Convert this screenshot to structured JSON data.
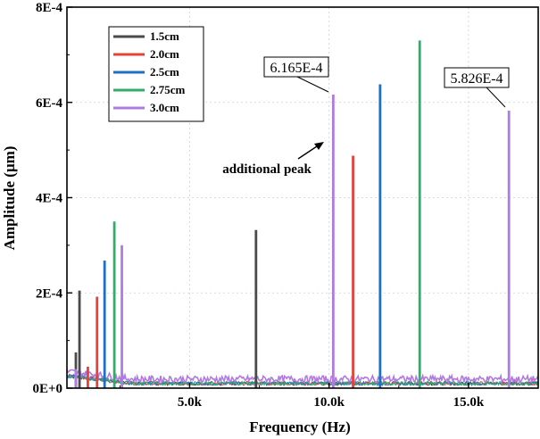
{
  "chart_data": {
    "type": "line",
    "title": "",
    "xlabel": "Frequency (Hz)",
    "ylabel": "Amplitude (μm)",
    "xlim": [
      600,
      17500
    ],
    "ylim": [
      0,
      0.0008
    ],
    "grid": true,
    "legend_position": "top-left",
    "x_ticks": [
      {
        "value": 5000,
        "label": "5.0k"
      },
      {
        "value": 10000,
        "label": "10.0k"
      },
      {
        "value": 15000,
        "label": "15.0k"
      }
    ],
    "y_ticks": [
      {
        "value": 0,
        "label": "0E+0"
      },
      {
        "value": 0.0002,
        "label": "2E-4"
      },
      {
        "value": 0.0004,
        "label": "4E-4"
      },
      {
        "value": 0.0006,
        "label": "6E-4"
      },
      {
        "value": 0.0008,
        "label": "8E-4"
      }
    ],
    "series": [
      {
        "name": "1.5cm",
        "color": "#4a4a4a",
        "peaks": [
          {
            "x": 920,
            "y": 7.5e-05
          },
          {
            "x": 1050,
            "y": 0.000205
          },
          {
            "x": 7380,
            "y": 0.000332
          }
        ]
      },
      {
        "name": "2.0cm",
        "color": "#e8403a",
        "peaks": [
          {
            "x": 1350,
            "y": 4.5e-05
          },
          {
            "x": 1680,
            "y": 0.000192
          },
          {
            "x": 10860,
            "y": 0.000488
          }
        ]
      },
      {
        "name": "2.5cm",
        "color": "#1f6fc7",
        "peaks": [
          {
            "x": 1950,
            "y": 0.000268
          },
          {
            "x": 11830,
            "y": 0.000638
          }
        ]
      },
      {
        "name": "2.75cm",
        "color": "#2fae6a",
        "peaks": [
          {
            "x": 2300,
            "y": 0.00035
          },
          {
            "x": 13250,
            "y": 0.00073
          }
        ]
      },
      {
        "name": "3.0cm",
        "color": "#b07be0",
        "peaks": [
          {
            "x": 920,
            "y": 4e-05
          },
          {
            "x": 2570,
            "y": 0.0003
          },
          {
            "x": 10150,
            "y": 0.0006165
          },
          {
            "x": 16450,
            "y": 0.0005826
          }
        ]
      }
    ],
    "annotations": [
      {
        "id": "callout-1",
        "text": "6.165E-4",
        "x": 10150,
        "y": 0.0006165
      },
      {
        "id": "callout-2",
        "text": "5.826E-4",
        "x": 16450,
        "y": 0.0005826
      },
      {
        "id": "note-1",
        "text": "additional peak",
        "x": 10150,
        "y": 0.0006165
      }
    ]
  }
}
